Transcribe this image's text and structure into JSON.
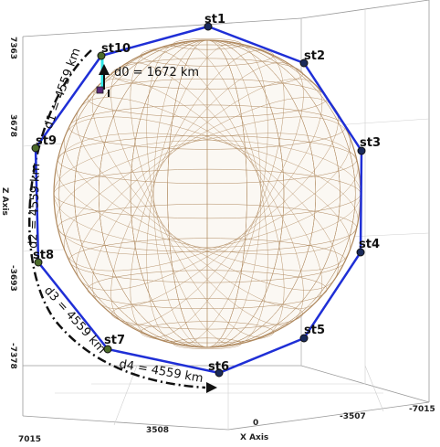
{
  "axes": {
    "z_title": "Z Axis",
    "x_title": "X Axis",
    "z_ticks": [
      "7363",
      "3678",
      "-3693",
      "-7378"
    ],
    "x_ticks": [
      "7015",
      "3508",
      "0",
      "-3507",
      "-7015"
    ]
  },
  "stations": [
    "st1",
    "st2",
    "st3",
    "st4",
    "st5",
    "st6",
    "st7",
    "st8",
    "st9",
    "st10"
  ],
  "satellite_label": "I",
  "distances": {
    "d0": "d0 = 1672 km",
    "d1": "d1 = 4559 km",
    "d2": "d2 = 4559 km",
    "d3": "d3 = 4559 km",
    "d4": "d4 = 4559 km"
  },
  "colors": {
    "polygon": "#1f2fd6",
    "station": "#1a2a5a",
    "station_green": "#4c6b2a",
    "sphere": "#b08a60",
    "d0_line": "#2ee6e6",
    "satellite": "#5a2a7a"
  }
}
